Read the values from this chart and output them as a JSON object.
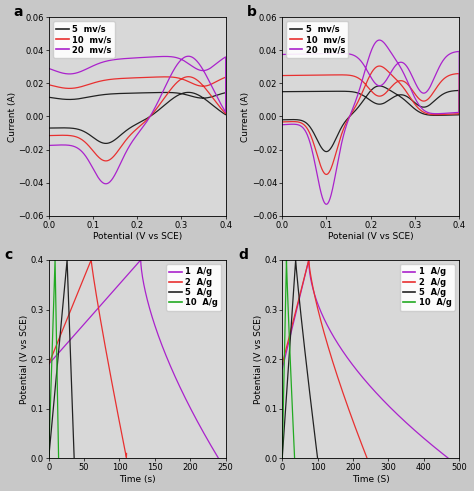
{
  "panel_a_label": "a",
  "panel_b_label": "b",
  "panel_c_label": "c",
  "panel_d_label": "d",
  "cv_xlabel_a": "Potential (V vs SCE)",
  "cv_xlabel_b": "Potenial (V vs SCE)",
  "cv_ylabel": "Current (A)",
  "cv_xlim": [
    0.0,
    0.4
  ],
  "cv_ylim": [
    -0.06,
    0.06
  ],
  "cv_xticks": [
    0.0,
    0.1,
    0.2,
    0.3,
    0.4
  ],
  "cv_yticks": [
    -0.06,
    -0.04,
    -0.02,
    0.0,
    0.02,
    0.04,
    0.06
  ],
  "cv_colors_5mv": "#222222",
  "cv_colors_10mv": "#e83030",
  "cv_colors_20mv": "#aa22cc",
  "cv_legend": [
    "5  mv/s",
    "10  mv/s",
    "20  mv/s"
  ],
  "gcd_xlabel_c": "Time (s)",
  "gcd_xlabel_d": "Time (S)",
  "gcd_ylabel": "Potential (V vs SCE)",
  "gcd_xlim_c": [
    0,
    250
  ],
  "gcd_xlim_d": [
    0,
    500
  ],
  "gcd_ylim": [
    0.0,
    0.4
  ],
  "gcd_yticks": [
    0.0,
    0.1,
    0.2,
    0.3,
    0.4
  ],
  "gcd_color_1ag": "#aa22cc",
  "gcd_color_2ag": "#e83030",
  "gcd_color_5ag": "#222222",
  "gcd_color_10ag": "#22aa22",
  "gcd_legend": [
    "1  A/g",
    "2  A/g",
    "5  A/g",
    "10  A/g"
  ],
  "bg_color": "#d8d8d8",
  "fig_bg": "#c8c8c8"
}
